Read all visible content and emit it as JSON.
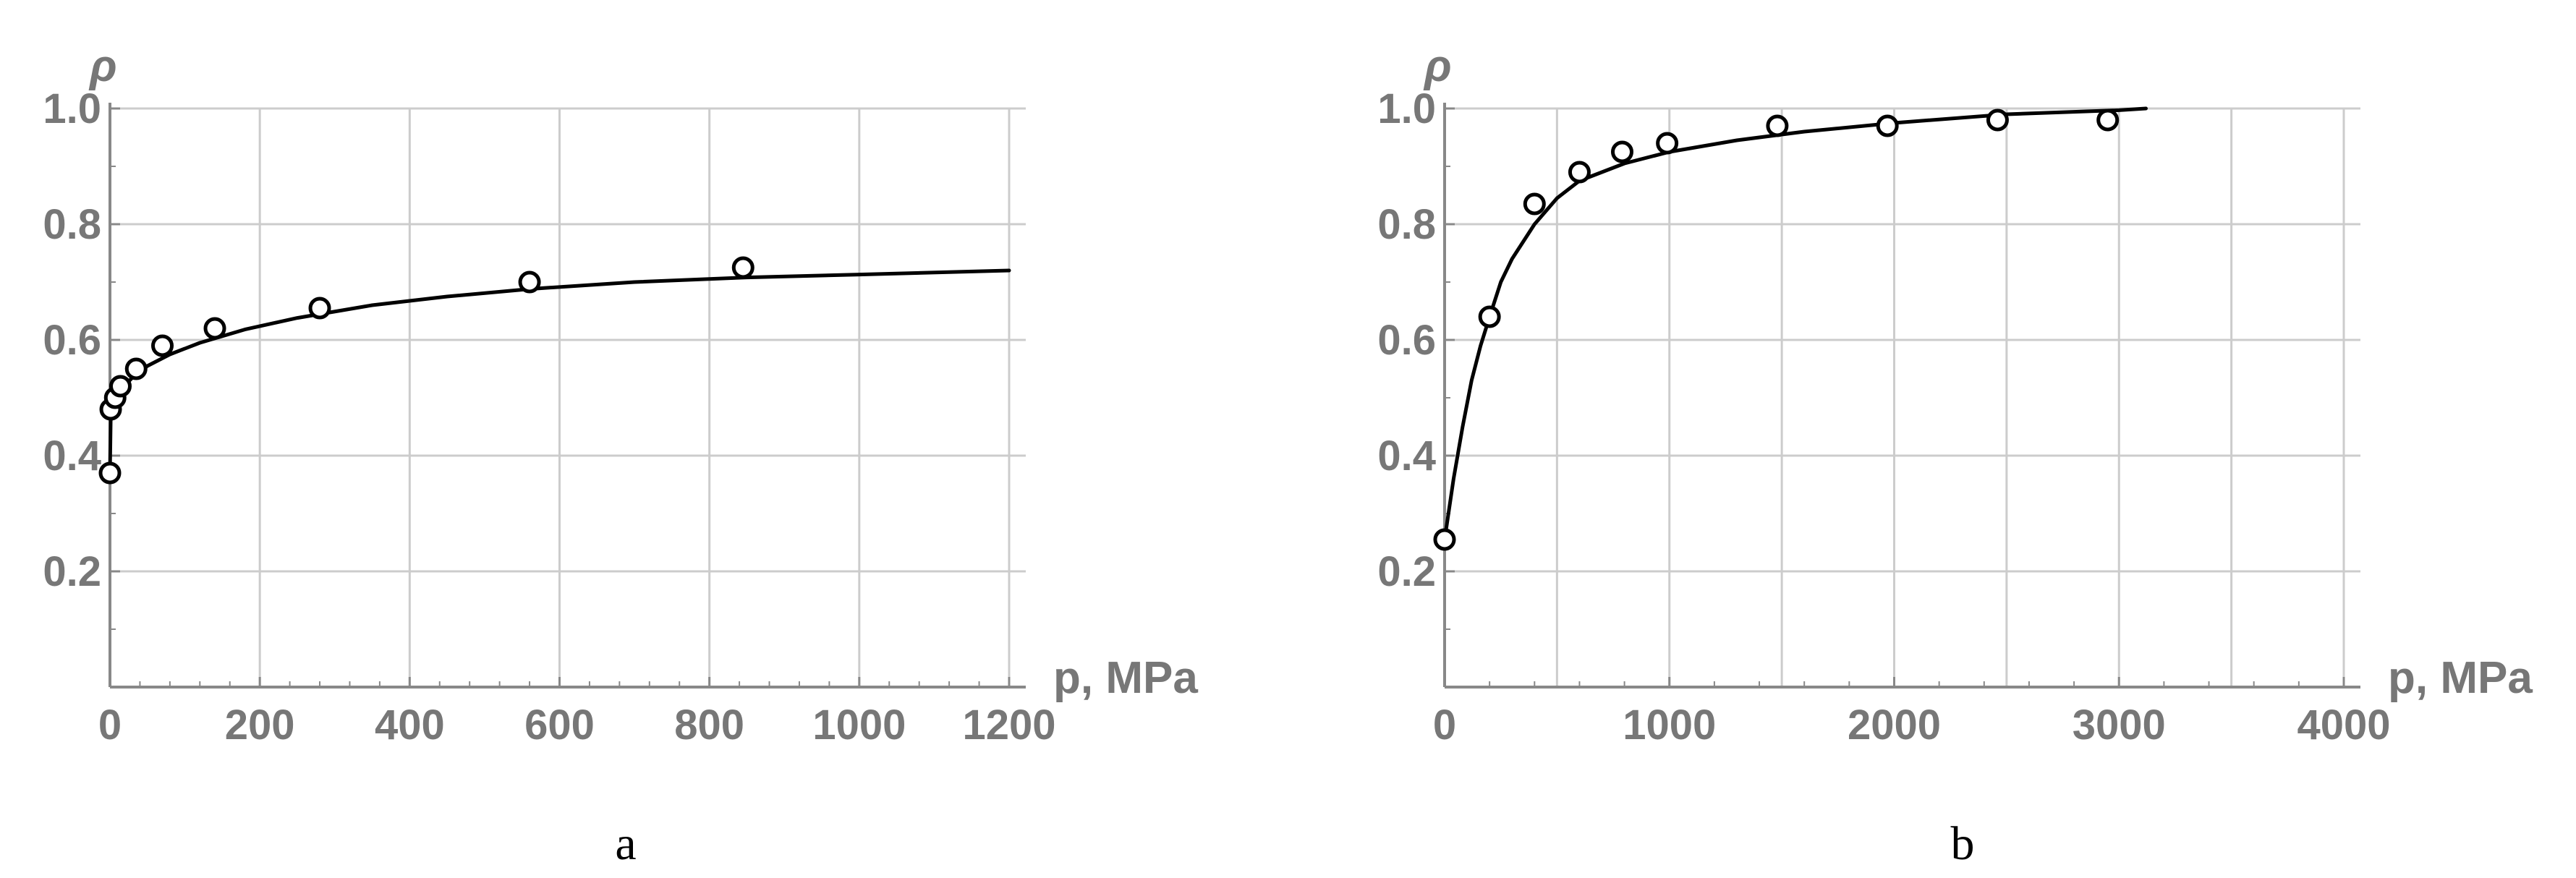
{
  "chart_data": [
    {
      "type": "scatter",
      "caption": "a",
      "xlabel": "p, MPa",
      "ylabel": "ρ",
      "xlim": [
        0,
        1200
      ],
      "ylim": [
        0,
        1.0
      ],
      "x_ticks": [
        0,
        200,
        400,
        600,
        800,
        1000,
        1200
      ],
      "y_ticks": [
        0.2,
        0.4,
        0.6,
        0.8,
        1.0
      ],
      "tick_labels_x": [
        "0",
        "200",
        "400",
        "600",
        "800",
        "1000",
        "1200"
      ],
      "tick_labels_y": [
        "0.2",
        "0.4",
        "0.6",
        "0.8",
        "1.0"
      ],
      "grid": true,
      "points": [
        {
          "x": 0,
          "y": 0.37
        },
        {
          "x": 1,
          "y": 0.48
        },
        {
          "x": 7,
          "y": 0.5
        },
        {
          "x": 14,
          "y": 0.52
        },
        {
          "x": 35,
          "y": 0.55
        },
        {
          "x": 70,
          "y": 0.59
        },
        {
          "x": 140,
          "y": 0.62
        },
        {
          "x": 280,
          "y": 0.655
        },
        {
          "x": 560,
          "y": 0.7
        },
        {
          "x": 845,
          "y": 0.725
        }
      ],
      "fit_curve": [
        [
          0,
          0.37
        ],
        [
          1,
          0.46
        ],
        [
          3,
          0.48
        ],
        [
          7,
          0.495
        ],
        [
          15,
          0.515
        ],
        [
          30,
          0.535
        ],
        [
          50,
          0.555
        ],
        [
          80,
          0.575
        ],
        [
          120,
          0.595
        ],
        [
          180,
          0.618
        ],
        [
          250,
          0.638
        ],
        [
          350,
          0.66
        ],
        [
          450,
          0.675
        ],
        [
          560,
          0.688
        ],
        [
          700,
          0.7
        ],
        [
          850,
          0.708
        ],
        [
          1000,
          0.713
        ],
        [
          1200,
          0.72
        ]
      ],
      "color": "#000000"
    },
    {
      "type": "scatter",
      "caption": "b",
      "xlabel": "p, MPa",
      "ylabel": "ρ",
      "xlim": [
        0,
        4000
      ],
      "ylim": [
        0,
        1.0
      ],
      "x_ticks": [
        0,
        1000,
        2000,
        3000,
        4000
      ],
      "x_minor_ticks": [
        500,
        1500,
        2500,
        3500
      ],
      "y_ticks": [
        0.2,
        0.4,
        0.6,
        0.8,
        1.0
      ],
      "tick_labels_x": [
        "0",
        "1000",
        "2000",
        "3000",
        "4000"
      ],
      "tick_labels_y": [
        "0.2",
        "0.4",
        "0.6",
        "0.8",
        "1.0"
      ],
      "grid": true,
      "points": [
        {
          "x": 0,
          "y": 0.255
        },
        {
          "x": 200,
          "y": 0.64
        },
        {
          "x": 400,
          "y": 0.835
        },
        {
          "x": 600,
          "y": 0.89
        },
        {
          "x": 790,
          "y": 0.925
        },
        {
          "x": 990,
          "y": 0.94
        },
        {
          "x": 1480,
          "y": 0.97
        },
        {
          "x": 1970,
          "y": 0.97
        },
        {
          "x": 2460,
          "y": 0.98
        },
        {
          "x": 2950,
          "y": 0.98
        }
      ],
      "fit_curve": [
        [
          0,
          0.255
        ],
        [
          40,
          0.36
        ],
        [
          80,
          0.45
        ],
        [
          120,
          0.53
        ],
        [
          160,
          0.59
        ],
        [
          200,
          0.64
        ],
        [
          250,
          0.7
        ],
        [
          300,
          0.74
        ],
        [
          400,
          0.8
        ],
        [
          500,
          0.845
        ],
        [
          600,
          0.875
        ],
        [
          800,
          0.905
        ],
        [
          1000,
          0.925
        ],
        [
          1300,
          0.945
        ],
        [
          1600,
          0.96
        ],
        [
          2000,
          0.975
        ],
        [
          2500,
          0.99
        ],
        [
          3000,
          0.997
        ],
        [
          3120,
          1.0
        ]
      ],
      "color": "#000000"
    }
  ]
}
